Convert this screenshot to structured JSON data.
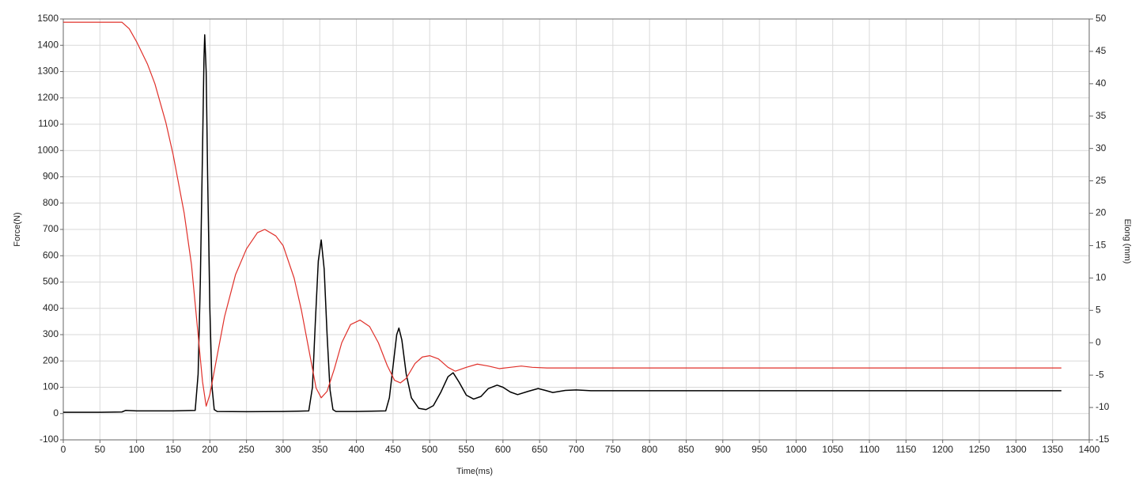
{
  "chart_data": {
    "type": "line",
    "x_label": "Time(ms)",
    "y_label": "Force(N)",
    "y2_label": "Elong (mm)",
    "xlim": [
      0,
      1400
    ],
    "xticks": [
      0,
      50,
      100,
      150,
      200,
      250,
      300,
      350,
      400,
      450,
      500,
      550,
      600,
      650,
      700,
      750,
      800,
      850,
      900,
      950,
      1000,
      1050,
      1100,
      1150,
      1200,
      1250,
      1300,
      1350,
      1400
    ],
    "ylim": [
      -100,
      1500
    ],
    "yticks": [
      -100,
      0,
      100,
      200,
      300,
      400,
      500,
      600,
      700,
      800,
      900,
      1000,
      1100,
      1200,
      1300,
      1400,
      1500
    ],
    "y2lim": [
      -15,
      50
    ],
    "y2ticks": [
      -15,
      -10,
      -5,
      0,
      5,
      10,
      15,
      20,
      25,
      30,
      35,
      40,
      45,
      50
    ],
    "grid": true,
    "series": [
      {
        "color": "#000000",
        "axis": "y",
        "x": [
          0,
          50,
          80,
          85,
          100,
          150,
          180,
          184,
          187,
          190,
          192,
          193,
          195,
          197,
          200,
          203,
          206,
          210,
          250,
          300,
          335,
          340,
          344,
          348,
          352,
          356,
          360,
          364,
          368,
          372,
          400,
          440,
          445,
          450,
          455,
          458,
          462,
          468,
          475,
          485,
          495,
          505,
          515,
          525,
          532,
          540,
          550,
          560,
          570,
          580,
          592,
          600,
          610,
          620,
          635,
          648,
          658,
          668,
          685,
          700,
          720,
          800,
          1362
        ],
        "values": [
          5,
          5,
          6,
          12,
          10,
          10,
          12,
          150,
          500,
          1000,
          1350,
          1440,
          1300,
          900,
          400,
          100,
          15,
          8,
          7,
          8,
          10,
          100,
          350,
          580,
          660,
          550,
          300,
          90,
          15,
          8,
          8,
          10,
          60,
          180,
          300,
          325,
          280,
          150,
          60,
          20,
          15,
          30,
          80,
          140,
          155,
          120,
          70,
          55,
          65,
          95,
          108,
          100,
          82,
          72,
          85,
          95,
          88,
          80,
          88,
          90,
          87,
          87,
          87
        ]
      },
      {
        "color": "#e0302a",
        "axis": "y2",
        "x": [
          0,
          80,
          90,
          100,
          115,
          125,
          140,
          150,
          165,
          175,
          185,
          190,
          195,
          200,
          210,
          220,
          235,
          250,
          265,
          275,
          290,
          300,
          315,
          325,
          335,
          345,
          352,
          360,
          370,
          380,
          392,
          405,
          418,
          430,
          442,
          452,
          460,
          468,
          480,
          490,
          500,
          512,
          525,
          535,
          550,
          565,
          580,
          595,
          610,
          625,
          640,
          660,
          1362
        ],
        "values": [
          49.5,
          49.5,
          48.5,
          46.5,
          43,
          40,
          34,
          29,
          20,
          12,
          0,
          -6,
          -9.8,
          -8,
          -2,
          4,
          10.5,
          14.5,
          17,
          17.5,
          16.5,
          15,
          10,
          5,
          -1,
          -7,
          -8.5,
          -7.5,
          -4,
          0,
          2.8,
          3.5,
          2.5,
          0,
          -3.5,
          -5.8,
          -6.2,
          -5.5,
          -3.2,
          -2.2,
          -2,
          -2.5,
          -3.8,
          -4.4,
          -3.8,
          -3.3,
          -3.6,
          -4.0,
          -3.8,
          -3.6,
          -3.8,
          -3.9,
          -3.9
        ]
      }
    ]
  }
}
